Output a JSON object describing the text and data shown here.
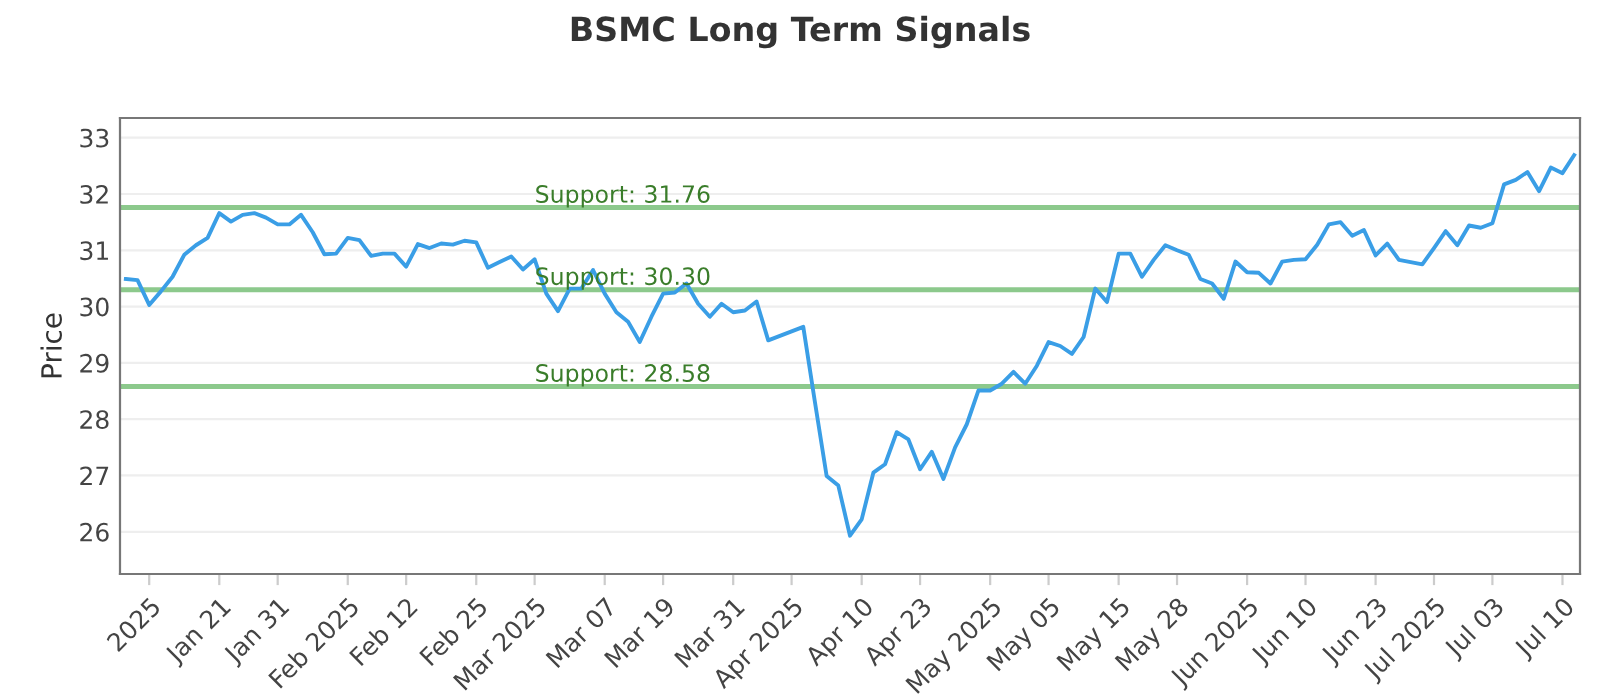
{
  "chart_data": {
    "type": "line",
    "title": "BSMC Long Term Signals",
    "ylabel": "Price",
    "categories": [
      null,
      null,
      "2025",
      null,
      null,
      null,
      null,
      null,
      "Jan 21",
      null,
      null,
      null,
      null,
      "Jan 31",
      null,
      null,
      null,
      null,
      null,
      "Feb 2025",
      null,
      null,
      null,
      null,
      "Feb 12",
      null,
      null,
      null,
      null,
      null,
      "Feb 25",
      null,
      null,
      null,
      null,
      "Mar 2025",
      null,
      null,
      null,
      null,
      null,
      "Mar 07",
      null,
      null,
      null,
      null,
      "Mar 19",
      null,
      null,
      null,
      null,
      null,
      "Mar 31",
      null,
      null,
      null,
      null,
      "Apr 2025",
      null,
      null,
      null,
      null,
      null,
      "Apr 10",
      null,
      null,
      null,
      null,
      "Apr 23",
      null,
      null,
      null,
      null,
      null,
      "May 2025",
      null,
      null,
      null,
      null,
      "May 05",
      null,
      null,
      null,
      null,
      null,
      "May 15",
      null,
      null,
      null,
      null,
      "May 28",
      null,
      null,
      null,
      null,
      null,
      "Jun 2025",
      null,
      null,
      null,
      null,
      "Jun 10",
      null,
      null,
      null,
      null,
      null,
      "Jun 23",
      null,
      null,
      null,
      null,
      "Jul 2025",
      null,
      null,
      null,
      null,
      "Jul 03",
      null,
      null,
      null,
      null,
      null,
      "Jul 10",
      null
    ],
    "series": [
      {
        "color": "#3a9ee6",
        "values": [
          30.49,
          30.47,
          30.03,
          30.27,
          30.53,
          30.92,
          31.09,
          31.22,
          31.66,
          31.51,
          31.63,
          31.66,
          31.58,
          31.46,
          31.46,
          31.63,
          31.32,
          30.93,
          30.94,
          31.22,
          31.18,
          30.9,
          30.94,
          30.94,
          30.71,
          31.11,
          31.04,
          31.12,
          31.1,
          31.17,
          31.14,
          30.69,
          30.79,
          30.89,
          30.66,
          30.84,
          30.23,
          29.92,
          30.32,
          30.32,
          30.65,
          30.23,
          29.9,
          29.73,
          29.37,
          29.82,
          30.23,
          30.25,
          30.41,
          30.05,
          29.82,
          30.05,
          29.9,
          29.93,
          30.09,
          29.4,
          29.48,
          29.56,
          29.64,
          28.3,
          26.99,
          26.82,
          25.93,
          26.22,
          27.05,
          27.2,
          27.77,
          27.64,
          27.11,
          27.42,
          26.94,
          27.5,
          27.91,
          28.51,
          28.51,
          28.63,
          28.84,
          28.63,
          28.95,
          29.37,
          29.3,
          29.16,
          29.46,
          30.32,
          30.08,
          30.94,
          30.94,
          30.53,
          30.83,
          31.09,
          31.0,
          30.92,
          30.49,
          30.41,
          30.14,
          30.8,
          30.61,
          30.6,
          30.41,
          30.8,
          30.83,
          30.84,
          31.1,
          31.46,
          31.5,
          31.26,
          31.36,
          30.91,
          31.12,
          30.83,
          30.79,
          30.75,
          31.04,
          31.34,
          31.09,
          31.44,
          31.4,
          31.48,
          32.17,
          32.25,
          32.39,
          32.05,
          32.47,
          32.37,
          32.69
        ]
      }
    ],
    "ylim": [
      25.25,
      33.35
    ],
    "yticks": [
      26,
      27,
      28,
      29,
      30,
      31,
      32,
      33
    ],
    "grid": "y",
    "legend": false,
    "marker": "none",
    "line_style": "solid",
    "ref_lines": [
      {
        "axis": "y",
        "value": 31.76,
        "label": "Support: 31.76",
        "color": "#8cc98c"
      },
      {
        "axis": "y",
        "value": 30.3,
        "label": "Support: 30.30",
        "color": "#8cc98c"
      },
      {
        "axis": "y",
        "value": 28.58,
        "label": "Support: 28.58",
        "color": "#8cc98c"
      }
    ]
  }
}
